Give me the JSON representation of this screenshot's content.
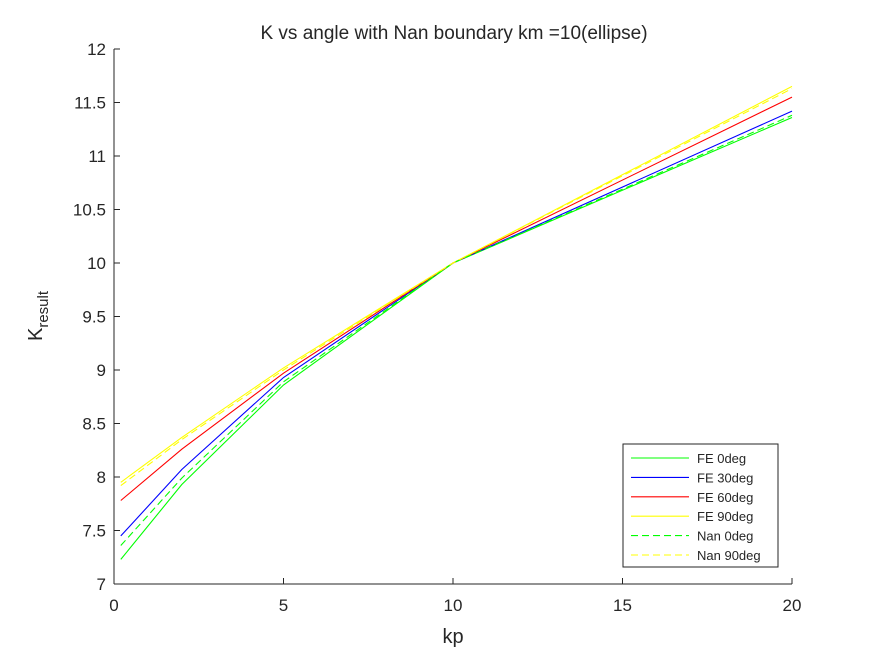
{
  "chart_data": {
    "type": "line",
    "title": "K vs angle with Nan boundary km =10(ellipse)",
    "xlabel": "kp",
    "ylabel_main": "K",
    "ylabel_sub": "result",
    "xlim": [
      0,
      20
    ],
    "ylim": [
      7,
      12
    ],
    "xticks": [
      0,
      5,
      10,
      15,
      20
    ],
    "xtick_labels": [
      "0",
      "5",
      "10",
      "15",
      "20"
    ],
    "yticks": [
      7,
      7.5,
      8,
      8.5,
      9,
      9.5,
      10,
      10.5,
      11,
      11.5,
      12
    ],
    "ytick_labels": [
      "7",
      "7.5",
      "8",
      "8.5",
      "9",
      "9.5",
      "10",
      "10.5",
      "11",
      "11.5",
      "12"
    ],
    "grid": false,
    "legend_position": "bottom-right",
    "x": [
      0.2,
      2,
      5,
      10,
      20
    ],
    "series": [
      {
        "name": "FE 0deg",
        "color": "#00ff00",
        "dash": "solid",
        "values": [
          7.23,
          7.93,
          8.86,
          10.0,
          11.36
        ]
      },
      {
        "name": "FE 30deg",
        "color": "#0000ff",
        "dash": "solid",
        "values": [
          7.45,
          8.07,
          8.93,
          10.0,
          11.42
        ]
      },
      {
        "name": "FE 60deg",
        "color": "#ff0000",
        "dash": "solid",
        "values": [
          7.78,
          8.26,
          8.97,
          10.0,
          11.55
        ]
      },
      {
        "name": "FE 90deg",
        "color": "#ffff00",
        "dash": "solid",
        "values": [
          7.95,
          8.37,
          9.02,
          10.0,
          11.65
        ]
      },
      {
        "name": "Nan 0deg",
        "color": "#00ff00",
        "dash": "dashed",
        "values": [
          7.36,
          7.99,
          8.89,
          10.0,
          11.38
        ]
      },
      {
        "name": "Nan 90deg",
        "color": "#ffff00",
        "dash": "dashed",
        "values": [
          7.92,
          8.35,
          9.0,
          10.0,
          11.63
        ]
      }
    ]
  }
}
